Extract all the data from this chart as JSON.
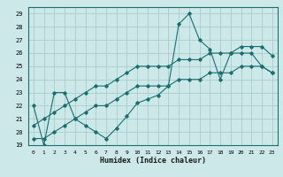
{
  "title": "",
  "xlabel": "Humidex (Indice chaleur)",
  "bg_color": "#cce8e8",
  "grid_color": "#aacccc",
  "line_color": "#1a6e6e",
  "xlim": [
    -0.5,
    23.5
  ],
  "ylim": [
    19,
    29.5
  ],
  "xticks": [
    0,
    1,
    2,
    3,
    4,
    5,
    6,
    7,
    8,
    9,
    10,
    11,
    12,
    13,
    14,
    15,
    16,
    17,
    18,
    19,
    20,
    21,
    22,
    23
  ],
  "yticks": [
    19,
    20,
    21,
    22,
    23,
    24,
    25,
    26,
    27,
    28,
    29
  ],
  "series1_x": [
    0,
    1,
    2,
    3,
    4,
    5,
    6,
    7,
    8,
    9,
    10,
    11,
    12,
    13,
    14,
    15,
    16,
    17,
    18,
    19,
    20,
    21,
    22,
    23
  ],
  "series1_y": [
    22,
    19,
    23,
    23,
    21,
    20.5,
    20,
    19.5,
    20.3,
    21.2,
    22.2,
    22.5,
    22.8,
    23.5,
    28.2,
    29,
    27,
    26.3,
    24,
    26,
    26,
    26,
    25,
    24.5
  ],
  "series2_x": [
    0,
    1,
    2,
    3,
    4,
    5,
    6,
    7,
    8,
    9,
    10,
    11,
    12,
    13,
    14,
    15,
    16,
    17,
    18,
    19,
    20,
    21,
    22,
    23
  ],
  "series2_y": [
    19.5,
    19.5,
    20,
    20.5,
    21,
    21.5,
    22,
    22,
    22.5,
    23,
    23.5,
    23.5,
    23.5,
    23.5,
    24,
    24,
    24,
    24.5,
    24.5,
    24.5,
    25,
    25,
    25,
    24.5
  ],
  "series3_x": [
    0,
    1,
    2,
    3,
    4,
    5,
    6,
    7,
    8,
    9,
    10,
    11,
    12,
    13,
    14,
    15,
    16,
    17,
    18,
    19,
    20,
    21,
    22,
    23
  ],
  "series3_y": [
    20.5,
    21,
    21.5,
    22,
    22.5,
    23,
    23.5,
    23.5,
    24,
    24.5,
    25,
    25,
    25,
    25,
    25.5,
    25.5,
    25.5,
    26,
    26,
    26,
    26.5,
    26.5,
    26.5,
    25.8
  ]
}
